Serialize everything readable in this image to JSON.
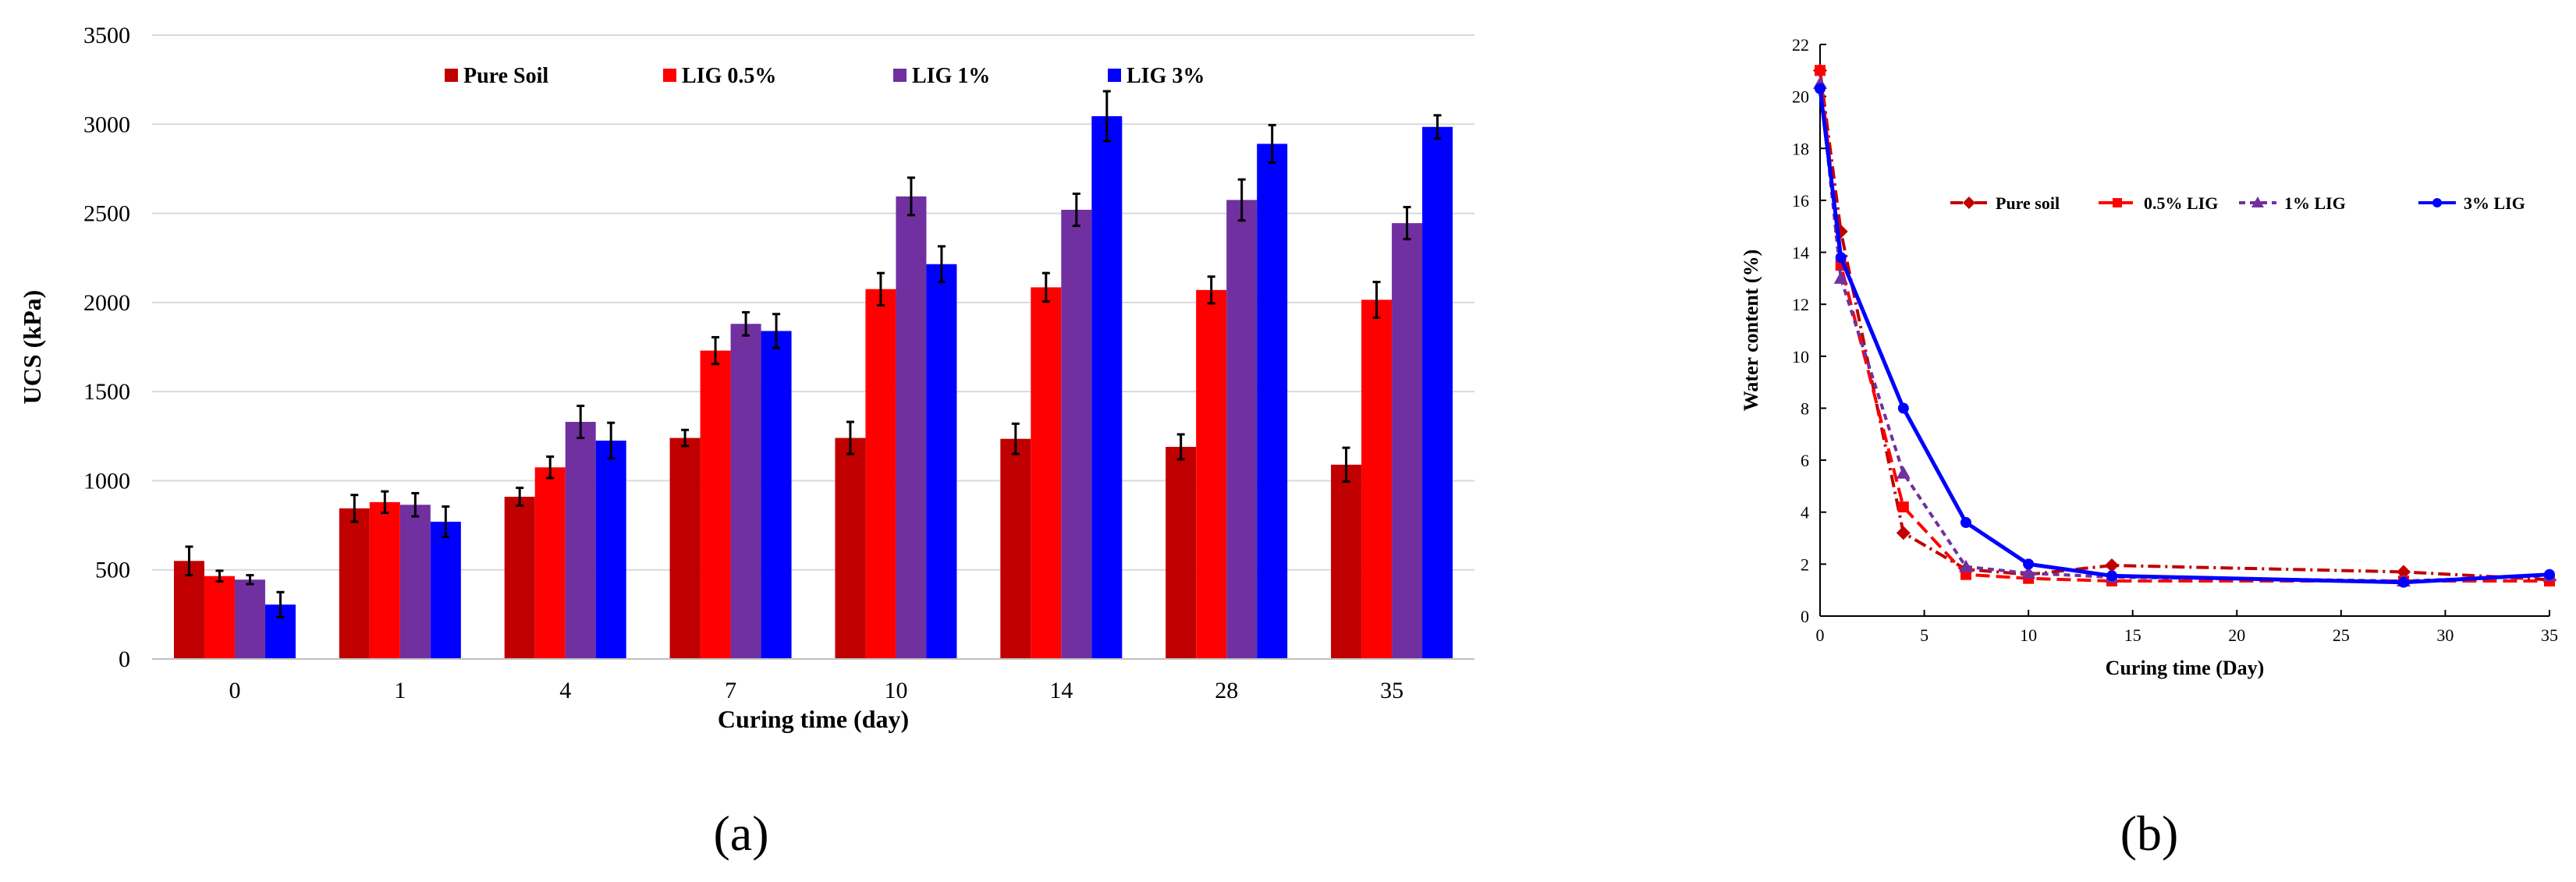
{
  "chart_data": [
    {
      "type": "bar",
      "panel_label": "(a)",
      "xlabel": "Curing time (day)",
      "ylabel": "UCS (kPa)",
      "ylim": [
        0,
        3500
      ],
      "yticks": [
        0,
        500,
        1000,
        1500,
        2000,
        2500,
        3000,
        3500
      ],
      "grid": true,
      "legend_position": "top-center",
      "categories": [
        "0",
        "1",
        "4",
        "7",
        "10",
        "14",
        "28",
        "35"
      ],
      "series": [
        {
          "name": "Pure Soil",
          "color": "#c00000",
          "values": [
            550,
            845,
            910,
            1240,
            1240,
            1235,
            1190,
            1090
          ],
          "errors": [
            80,
            75,
            50,
            45,
            90,
            85,
            70,
            95
          ]
        },
        {
          "name": "LIG 0.5%",
          "color": "#ff0000",
          "values": [
            465,
            880,
            1075,
            1730,
            2075,
            2085,
            2070,
            2015
          ],
          "errors": [
            30,
            60,
            60,
            75,
            90,
            80,
            75,
            100
          ]
        },
        {
          "name": "LIG 1%",
          "color": "#7030a0",
          "values": [
            445,
            865,
            1330,
            1880,
            2595,
            2520,
            2575,
            2445
          ],
          "errors": [
            25,
            65,
            90,
            65,
            105,
            90,
            115,
            90
          ]
        },
        {
          "name": "LIG 3%",
          "color": "#0000ff",
          "values": [
            305,
            770,
            1225,
            1840,
            2215,
            3045,
            2890,
            2985
          ],
          "errors": [
            70,
            85,
            100,
            95,
            100,
            140,
            105,
            65
          ]
        }
      ]
    },
    {
      "type": "line",
      "panel_label": "(b)",
      "xlabel": "Curing time (Day)",
      "ylabel": "Water content (%)",
      "xlim": [
        0,
        35
      ],
      "ylim": [
        0,
        22
      ],
      "xticks": [
        0,
        5,
        10,
        15,
        20,
        25,
        30,
        35
      ],
      "yticks": [
        0,
        2,
        4,
        6,
        8,
        10,
        12,
        14,
        16,
        18,
        20,
        22
      ],
      "legend_position": "top-right",
      "series": [
        {
          "name": "Pure soil",
          "color": "#c00000",
          "marker": "diamond",
          "dash": "dashdot",
          "x": [
            0,
            1,
            4,
            7,
            10,
            14,
            28,
            35
          ],
          "y": [
            21.0,
            14.8,
            3.2,
            1.8,
            1.6,
            1.95,
            1.7,
            1.4
          ]
        },
        {
          "name": "0.5% LIG",
          "color": "#ff0000",
          "marker": "square",
          "dash": "dash",
          "x": [
            0,
            1,
            4,
            7,
            10,
            14,
            28,
            35
          ],
          "y": [
            21.0,
            13.5,
            4.2,
            1.6,
            1.45,
            1.35,
            1.35,
            1.35
          ]
        },
        {
          "name": "1% LIG",
          "color": "#7030a0",
          "marker": "triangle",
          "dash": "shortdash",
          "x": [
            0,
            1,
            4,
            7,
            10,
            14,
            28,
            35
          ],
          "y": [
            20.5,
            13.0,
            5.5,
            1.9,
            1.65,
            1.5,
            1.35,
            1.55
          ]
        },
        {
          "name": "3% LIG",
          "color": "#0000ff",
          "marker": "circle",
          "dash": "solid",
          "x": [
            0,
            1,
            4,
            7,
            10,
            14,
            28,
            35
          ],
          "y": [
            20.3,
            13.8,
            8.0,
            3.6,
            2.0,
            1.55,
            1.3,
            1.6
          ]
        }
      ]
    }
  ]
}
